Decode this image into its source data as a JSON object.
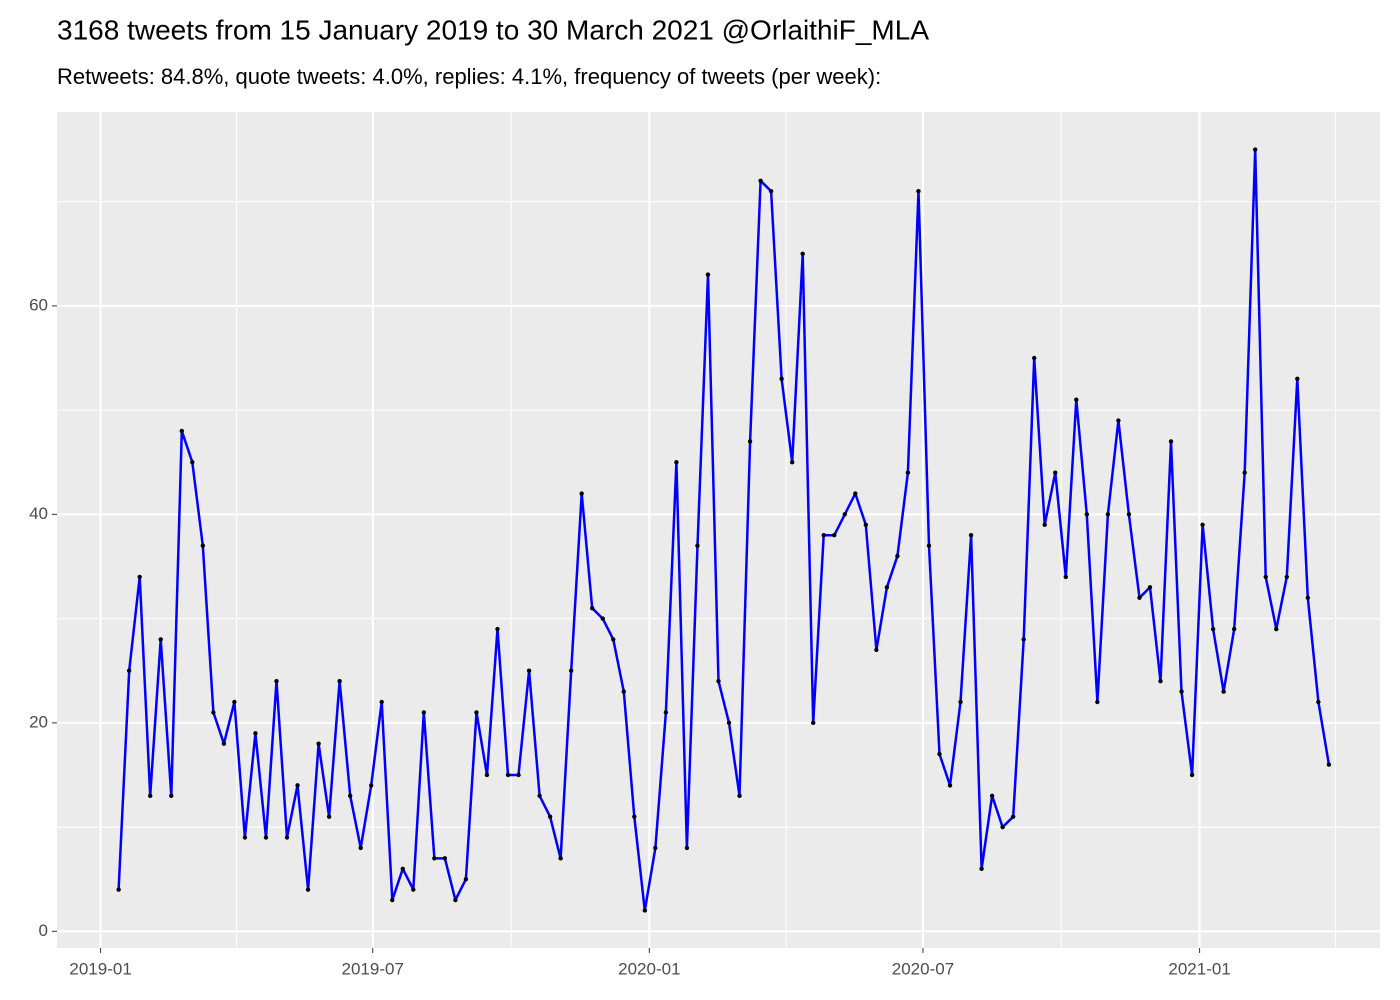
{
  "chart_data": {
    "type": "line",
    "title": "3168 tweets from 15 January 2019 to 30 March 2021 @OrlaithiF_MLA",
    "subtitle": "Retweets: 84.8%, quote tweets: 4.0%, replies: 4.1%, frequency of tweets (per week):",
    "x": [
      "2019-01-13",
      "2019-01-20",
      "2019-01-27",
      "2019-02-03",
      "2019-02-10",
      "2019-02-17",
      "2019-02-24",
      "2019-03-03",
      "2019-03-10",
      "2019-03-17",
      "2019-03-24",
      "2019-03-31",
      "2019-04-07",
      "2019-04-14",
      "2019-04-21",
      "2019-04-28",
      "2019-05-05",
      "2019-05-12",
      "2019-05-19",
      "2019-05-26",
      "2019-06-02",
      "2019-06-09",
      "2019-06-16",
      "2019-06-23",
      "2019-06-30",
      "2019-07-07",
      "2019-07-14",
      "2019-07-21",
      "2019-07-28",
      "2019-08-04",
      "2019-08-11",
      "2019-08-18",
      "2019-08-25",
      "2019-09-01",
      "2019-09-08",
      "2019-09-15",
      "2019-09-22",
      "2019-09-29",
      "2019-10-06",
      "2019-10-13",
      "2019-10-20",
      "2019-10-27",
      "2019-11-03",
      "2019-11-10",
      "2019-11-17",
      "2019-11-24",
      "2019-12-01",
      "2019-12-08",
      "2019-12-15",
      "2019-12-22",
      "2019-12-29",
      "2020-01-05",
      "2020-01-12",
      "2020-01-19",
      "2020-01-26",
      "2020-02-02",
      "2020-02-09",
      "2020-02-16",
      "2020-02-23",
      "2020-03-01",
      "2020-03-08",
      "2020-03-15",
      "2020-03-22",
      "2020-03-29",
      "2020-04-05",
      "2020-04-12",
      "2020-04-19",
      "2020-04-26",
      "2020-05-03",
      "2020-05-10",
      "2020-05-17",
      "2020-05-24",
      "2020-05-31",
      "2020-06-07",
      "2020-06-14",
      "2020-06-21",
      "2020-06-28",
      "2020-07-05",
      "2020-07-12",
      "2020-07-19",
      "2020-07-26",
      "2020-08-02",
      "2020-08-09",
      "2020-08-16",
      "2020-08-23",
      "2020-08-30",
      "2020-09-06",
      "2020-09-13",
      "2020-09-20",
      "2020-09-27",
      "2020-10-04",
      "2020-10-11",
      "2020-10-18",
      "2020-10-25",
      "2020-11-01",
      "2020-11-08",
      "2020-11-15",
      "2020-11-22",
      "2020-11-29",
      "2020-12-06",
      "2020-12-13",
      "2020-12-20",
      "2020-12-27",
      "2021-01-03",
      "2021-01-10",
      "2021-01-17",
      "2021-01-24",
      "2021-01-31",
      "2021-02-07",
      "2021-02-14",
      "2021-02-21",
      "2021-02-28",
      "2021-03-07",
      "2021-03-14",
      "2021-03-21",
      "2021-03-28"
    ],
    "series": [
      {
        "color": "#0000ff",
        "point_color": "#000000",
        "values": [
          4,
          25,
          34,
          13,
          28,
          13,
          48,
          45,
          37,
          21,
          18,
          22,
          9,
          19,
          9,
          24,
          9,
          14,
          4,
          18,
          11,
          24,
          13,
          8,
          14,
          22,
          3,
          6,
          4,
          21,
          7,
          7,
          3,
          5,
          21,
          15,
          29,
          15,
          15,
          25,
          13,
          11,
          7,
          25,
          42,
          31,
          30,
          28,
          23,
          11,
          2,
          8,
          21,
          45,
          8,
          37,
          63,
          24,
          20,
          13,
          47,
          72,
          71,
          53,
          45,
          65,
          20,
          38,
          38,
          40,
          42,
          39,
          27,
          33,
          36,
          44,
          71,
          37,
          17,
          14,
          22,
          38,
          6,
          13,
          10,
          11,
          28,
          55,
          39,
          44,
          34,
          51,
          40,
          22,
          40,
          49,
          40,
          32,
          33,
          24,
          47,
          23,
          15,
          39,
          29,
          23,
          29,
          44,
          75,
          34,
          29,
          34,
          53,
          32,
          22,
          16
        ]
      }
    ],
    "xlim": [
      "2018-12-03",
      "2021-05-01"
    ],
    "xticks": [
      "2019-01",
      "2019-07",
      "2020-01",
      "2020-07",
      "2021-01"
    ],
    "ylim": [
      -1.6,
      78.6
    ],
    "yticks": [
      0,
      20,
      40,
      60
    ],
    "grid": true
  }
}
